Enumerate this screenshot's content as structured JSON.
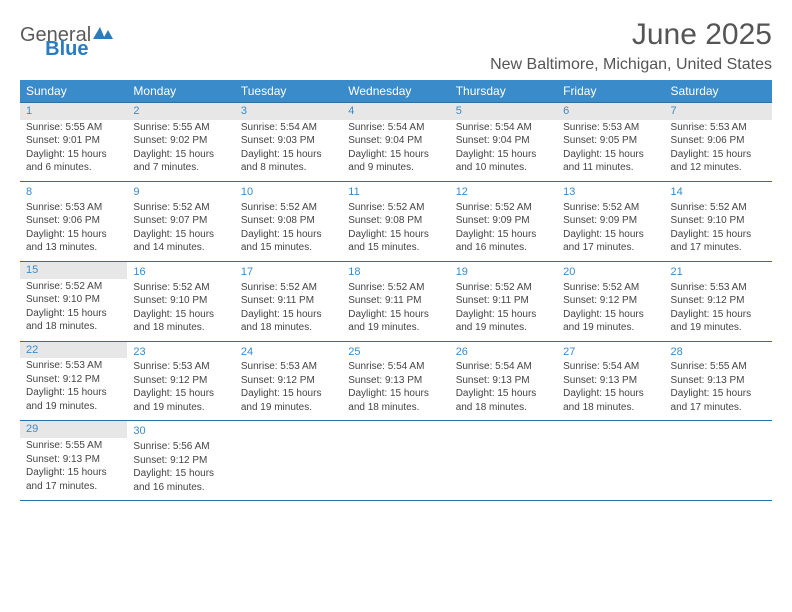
{
  "logo": {
    "part1": "General",
    "part2": "Blue"
  },
  "title": "June 2025",
  "location": "New Baltimore, Michigan, United States",
  "colors": {
    "header_bg": "#3a8bc9",
    "header_text": "#ffffff",
    "accent": "#2b6fa3",
    "daynum": "#3a8bc9",
    "shade_bg": "#e7e7e7",
    "body_text": "#444444",
    "page_bg": "#ffffff"
  },
  "typography": {
    "body_fontsize_pt": 8,
    "header_fontsize_pt": 9,
    "title_fontsize_pt": 22
  },
  "layout": {
    "columns": 7,
    "rows": 6,
    "shaded_dates": [
      1,
      2,
      3,
      4,
      5,
      6,
      7,
      15,
      22,
      29
    ]
  },
  "day_headers": [
    "Sunday",
    "Monday",
    "Tuesday",
    "Wednesday",
    "Thursday",
    "Friday",
    "Saturday"
  ],
  "days": [
    {
      "n": 1,
      "sr": "5:55 AM",
      "ss": "9:01 PM",
      "dl": "15 hours and 6 minutes."
    },
    {
      "n": 2,
      "sr": "5:55 AM",
      "ss": "9:02 PM",
      "dl": "15 hours and 7 minutes."
    },
    {
      "n": 3,
      "sr": "5:54 AM",
      "ss": "9:03 PM",
      "dl": "15 hours and 8 minutes."
    },
    {
      "n": 4,
      "sr": "5:54 AM",
      "ss": "9:04 PM",
      "dl": "15 hours and 9 minutes."
    },
    {
      "n": 5,
      "sr": "5:54 AM",
      "ss": "9:04 PM",
      "dl": "15 hours and 10 minutes."
    },
    {
      "n": 6,
      "sr": "5:53 AM",
      "ss": "9:05 PM",
      "dl": "15 hours and 11 minutes."
    },
    {
      "n": 7,
      "sr": "5:53 AM",
      "ss": "9:06 PM",
      "dl": "15 hours and 12 minutes."
    },
    {
      "n": 8,
      "sr": "5:53 AM",
      "ss": "9:06 PM",
      "dl": "15 hours and 13 minutes."
    },
    {
      "n": 9,
      "sr": "5:52 AM",
      "ss": "9:07 PM",
      "dl": "15 hours and 14 minutes."
    },
    {
      "n": 10,
      "sr": "5:52 AM",
      "ss": "9:08 PM",
      "dl": "15 hours and 15 minutes."
    },
    {
      "n": 11,
      "sr": "5:52 AM",
      "ss": "9:08 PM",
      "dl": "15 hours and 15 minutes."
    },
    {
      "n": 12,
      "sr": "5:52 AM",
      "ss": "9:09 PM",
      "dl": "15 hours and 16 minutes."
    },
    {
      "n": 13,
      "sr": "5:52 AM",
      "ss": "9:09 PM",
      "dl": "15 hours and 17 minutes."
    },
    {
      "n": 14,
      "sr": "5:52 AM",
      "ss": "9:10 PM",
      "dl": "15 hours and 17 minutes."
    },
    {
      "n": 15,
      "sr": "5:52 AM",
      "ss": "9:10 PM",
      "dl": "15 hours and 18 minutes."
    },
    {
      "n": 16,
      "sr": "5:52 AM",
      "ss": "9:10 PM",
      "dl": "15 hours and 18 minutes."
    },
    {
      "n": 17,
      "sr": "5:52 AM",
      "ss": "9:11 PM",
      "dl": "15 hours and 18 minutes."
    },
    {
      "n": 18,
      "sr": "5:52 AM",
      "ss": "9:11 PM",
      "dl": "15 hours and 19 minutes."
    },
    {
      "n": 19,
      "sr": "5:52 AM",
      "ss": "9:11 PM",
      "dl": "15 hours and 19 minutes."
    },
    {
      "n": 20,
      "sr": "5:52 AM",
      "ss": "9:12 PM",
      "dl": "15 hours and 19 minutes."
    },
    {
      "n": 21,
      "sr": "5:53 AM",
      "ss": "9:12 PM",
      "dl": "15 hours and 19 minutes."
    },
    {
      "n": 22,
      "sr": "5:53 AM",
      "ss": "9:12 PM",
      "dl": "15 hours and 19 minutes."
    },
    {
      "n": 23,
      "sr": "5:53 AM",
      "ss": "9:12 PM",
      "dl": "15 hours and 19 minutes."
    },
    {
      "n": 24,
      "sr": "5:53 AM",
      "ss": "9:12 PM",
      "dl": "15 hours and 19 minutes."
    },
    {
      "n": 25,
      "sr": "5:54 AM",
      "ss": "9:13 PM",
      "dl": "15 hours and 18 minutes."
    },
    {
      "n": 26,
      "sr": "5:54 AM",
      "ss": "9:13 PM",
      "dl": "15 hours and 18 minutes."
    },
    {
      "n": 27,
      "sr": "5:54 AM",
      "ss": "9:13 PM",
      "dl": "15 hours and 18 minutes."
    },
    {
      "n": 28,
      "sr": "5:55 AM",
      "ss": "9:13 PM",
      "dl": "15 hours and 17 minutes."
    },
    {
      "n": 29,
      "sr": "5:55 AM",
      "ss": "9:13 PM",
      "dl": "15 hours and 17 minutes."
    },
    {
      "n": 30,
      "sr": "5:56 AM",
      "ss": "9:12 PM",
      "dl": "15 hours and 16 minutes."
    }
  ],
  "labels": {
    "sunrise": "Sunrise:",
    "sunset": "Sunset:",
    "daylight": "Daylight:"
  }
}
